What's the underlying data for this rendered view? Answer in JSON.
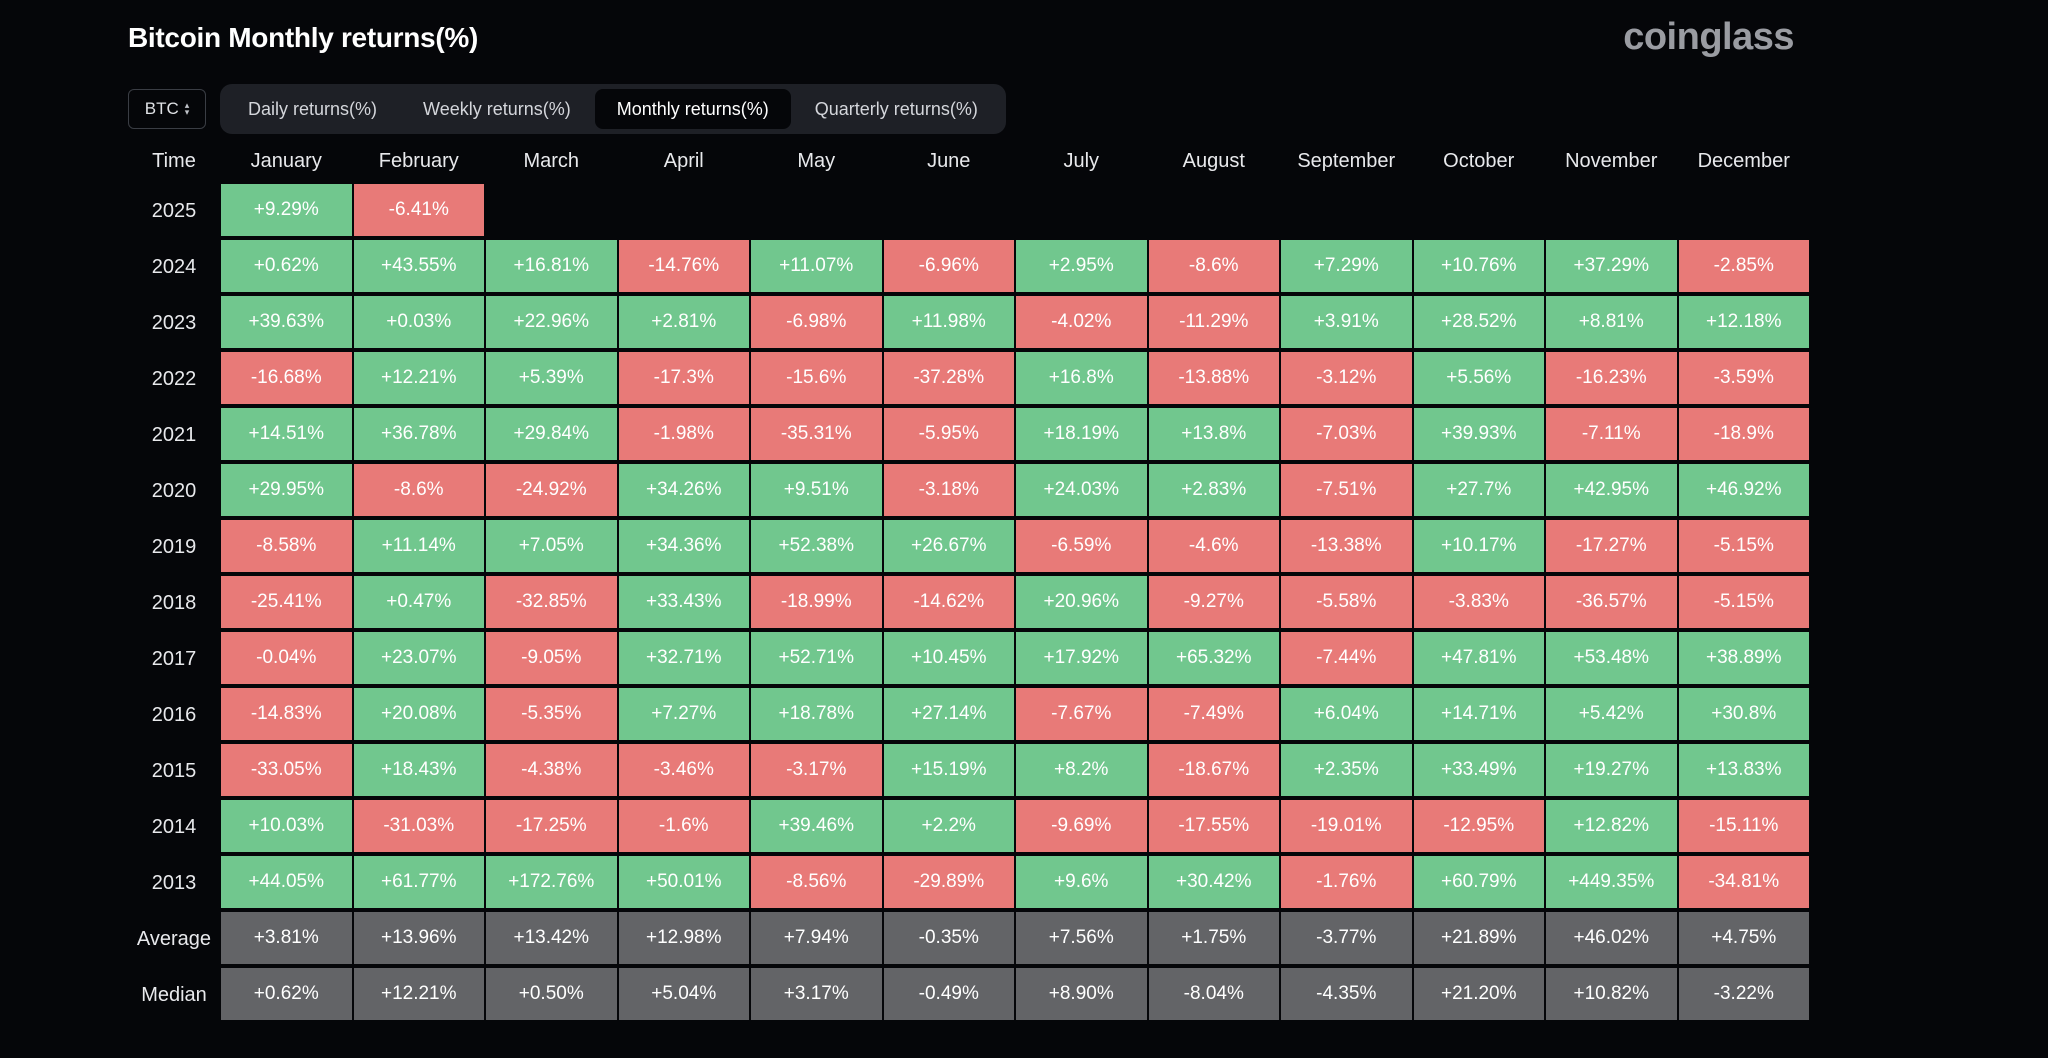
{
  "title": "Bitcoin Monthly returns(%)",
  "logo": "coinglass",
  "coin_select": {
    "value": "BTC"
  },
  "tabs": [
    {
      "label": "Daily returns(%)",
      "active": false
    },
    {
      "label": "Weekly returns(%)",
      "active": false
    },
    {
      "label": "Monthly returns(%)",
      "active": true
    },
    {
      "label": "Quarterly returns(%)",
      "active": false
    }
  ],
  "colors": {
    "positive": "#71c78e",
    "negative": "#e87a78",
    "stat": "#636467"
  },
  "table": {
    "corner_label": "Time",
    "months": [
      "January",
      "February",
      "March",
      "April",
      "May",
      "June",
      "July",
      "August",
      "September",
      "October",
      "November",
      "December"
    ],
    "rows": [
      {
        "label": "2025",
        "values": [
          "+9.29%",
          "-6.41%"
        ]
      },
      {
        "label": "2024",
        "values": [
          "+0.62%",
          "+43.55%",
          "+16.81%",
          "-14.76%",
          "+11.07%",
          "-6.96%",
          "+2.95%",
          "-8.6%",
          "+7.29%",
          "+10.76%",
          "+37.29%",
          "-2.85%"
        ]
      },
      {
        "label": "2023",
        "values": [
          "+39.63%",
          "+0.03%",
          "+22.96%",
          "+2.81%",
          "-6.98%",
          "+11.98%",
          "-4.02%",
          "-11.29%",
          "+3.91%",
          "+28.52%",
          "+8.81%",
          "+12.18%"
        ]
      },
      {
        "label": "2022",
        "values": [
          "-16.68%",
          "+12.21%",
          "+5.39%",
          "-17.3%",
          "-15.6%",
          "-37.28%",
          "+16.8%",
          "-13.88%",
          "-3.12%",
          "+5.56%",
          "-16.23%",
          "-3.59%"
        ]
      },
      {
        "label": "2021",
        "values": [
          "+14.51%",
          "+36.78%",
          "+29.84%",
          "-1.98%",
          "-35.31%",
          "-5.95%",
          "+18.19%",
          "+13.8%",
          "-7.03%",
          "+39.93%",
          "-7.11%",
          "-18.9%"
        ]
      },
      {
        "label": "2020",
        "values": [
          "+29.95%",
          "-8.6%",
          "-24.92%",
          "+34.26%",
          "+9.51%",
          "-3.18%",
          "+24.03%",
          "+2.83%",
          "-7.51%",
          "+27.7%",
          "+42.95%",
          "+46.92%"
        ]
      },
      {
        "label": "2019",
        "values": [
          "-8.58%",
          "+11.14%",
          "+7.05%",
          "+34.36%",
          "+52.38%",
          "+26.67%",
          "-6.59%",
          "-4.6%",
          "-13.38%",
          "+10.17%",
          "-17.27%",
          "-5.15%"
        ]
      },
      {
        "label": "2018",
        "values": [
          "-25.41%",
          "+0.47%",
          "-32.85%",
          "+33.43%",
          "-18.99%",
          "-14.62%",
          "+20.96%",
          "-9.27%",
          "-5.58%",
          "-3.83%",
          "-36.57%",
          "-5.15%"
        ]
      },
      {
        "label": "2017",
        "values": [
          "-0.04%",
          "+23.07%",
          "-9.05%",
          "+32.71%",
          "+52.71%",
          "+10.45%",
          "+17.92%",
          "+65.32%",
          "-7.44%",
          "+47.81%",
          "+53.48%",
          "+38.89%"
        ]
      },
      {
        "label": "2016",
        "values": [
          "-14.83%",
          "+20.08%",
          "-5.35%",
          "+7.27%",
          "+18.78%",
          "+27.14%",
          "-7.67%",
          "-7.49%",
          "+6.04%",
          "+14.71%",
          "+5.42%",
          "+30.8%"
        ]
      },
      {
        "label": "2015",
        "values": [
          "-33.05%",
          "+18.43%",
          "-4.38%",
          "-3.46%",
          "-3.17%",
          "+15.19%",
          "+8.2%",
          "-18.67%",
          "+2.35%",
          "+33.49%",
          "+19.27%",
          "+13.83%"
        ]
      },
      {
        "label": "2014",
        "values": [
          "+10.03%",
          "-31.03%",
          "-17.25%",
          "-1.6%",
          "+39.46%",
          "+2.2%",
          "-9.69%",
          "-17.55%",
          "-19.01%",
          "-12.95%",
          "+12.82%",
          "-15.11%"
        ]
      },
      {
        "label": "2013",
        "values": [
          "+44.05%",
          "+61.77%",
          "+172.76%",
          "+50.01%",
          "-8.56%",
          "-29.89%",
          "+9.6%",
          "+30.42%",
          "-1.76%",
          "+60.79%",
          "+449.35%",
          "-34.81%"
        ]
      }
    ],
    "stats": [
      {
        "label": "Average",
        "values": [
          "+3.81%",
          "+13.96%",
          "+13.42%",
          "+12.98%",
          "+7.94%",
          "-0.35%",
          "+7.56%",
          "+1.75%",
          "-3.77%",
          "+21.89%",
          "+46.02%",
          "+4.75%"
        ]
      },
      {
        "label": "Median",
        "values": [
          "+0.62%",
          "+12.21%",
          "+0.50%",
          "+5.04%",
          "+3.17%",
          "-0.49%",
          "+8.90%",
          "-8.04%",
          "-4.35%",
          "+21.20%",
          "+10.82%",
          "-3.22%"
        ]
      }
    ]
  }
}
